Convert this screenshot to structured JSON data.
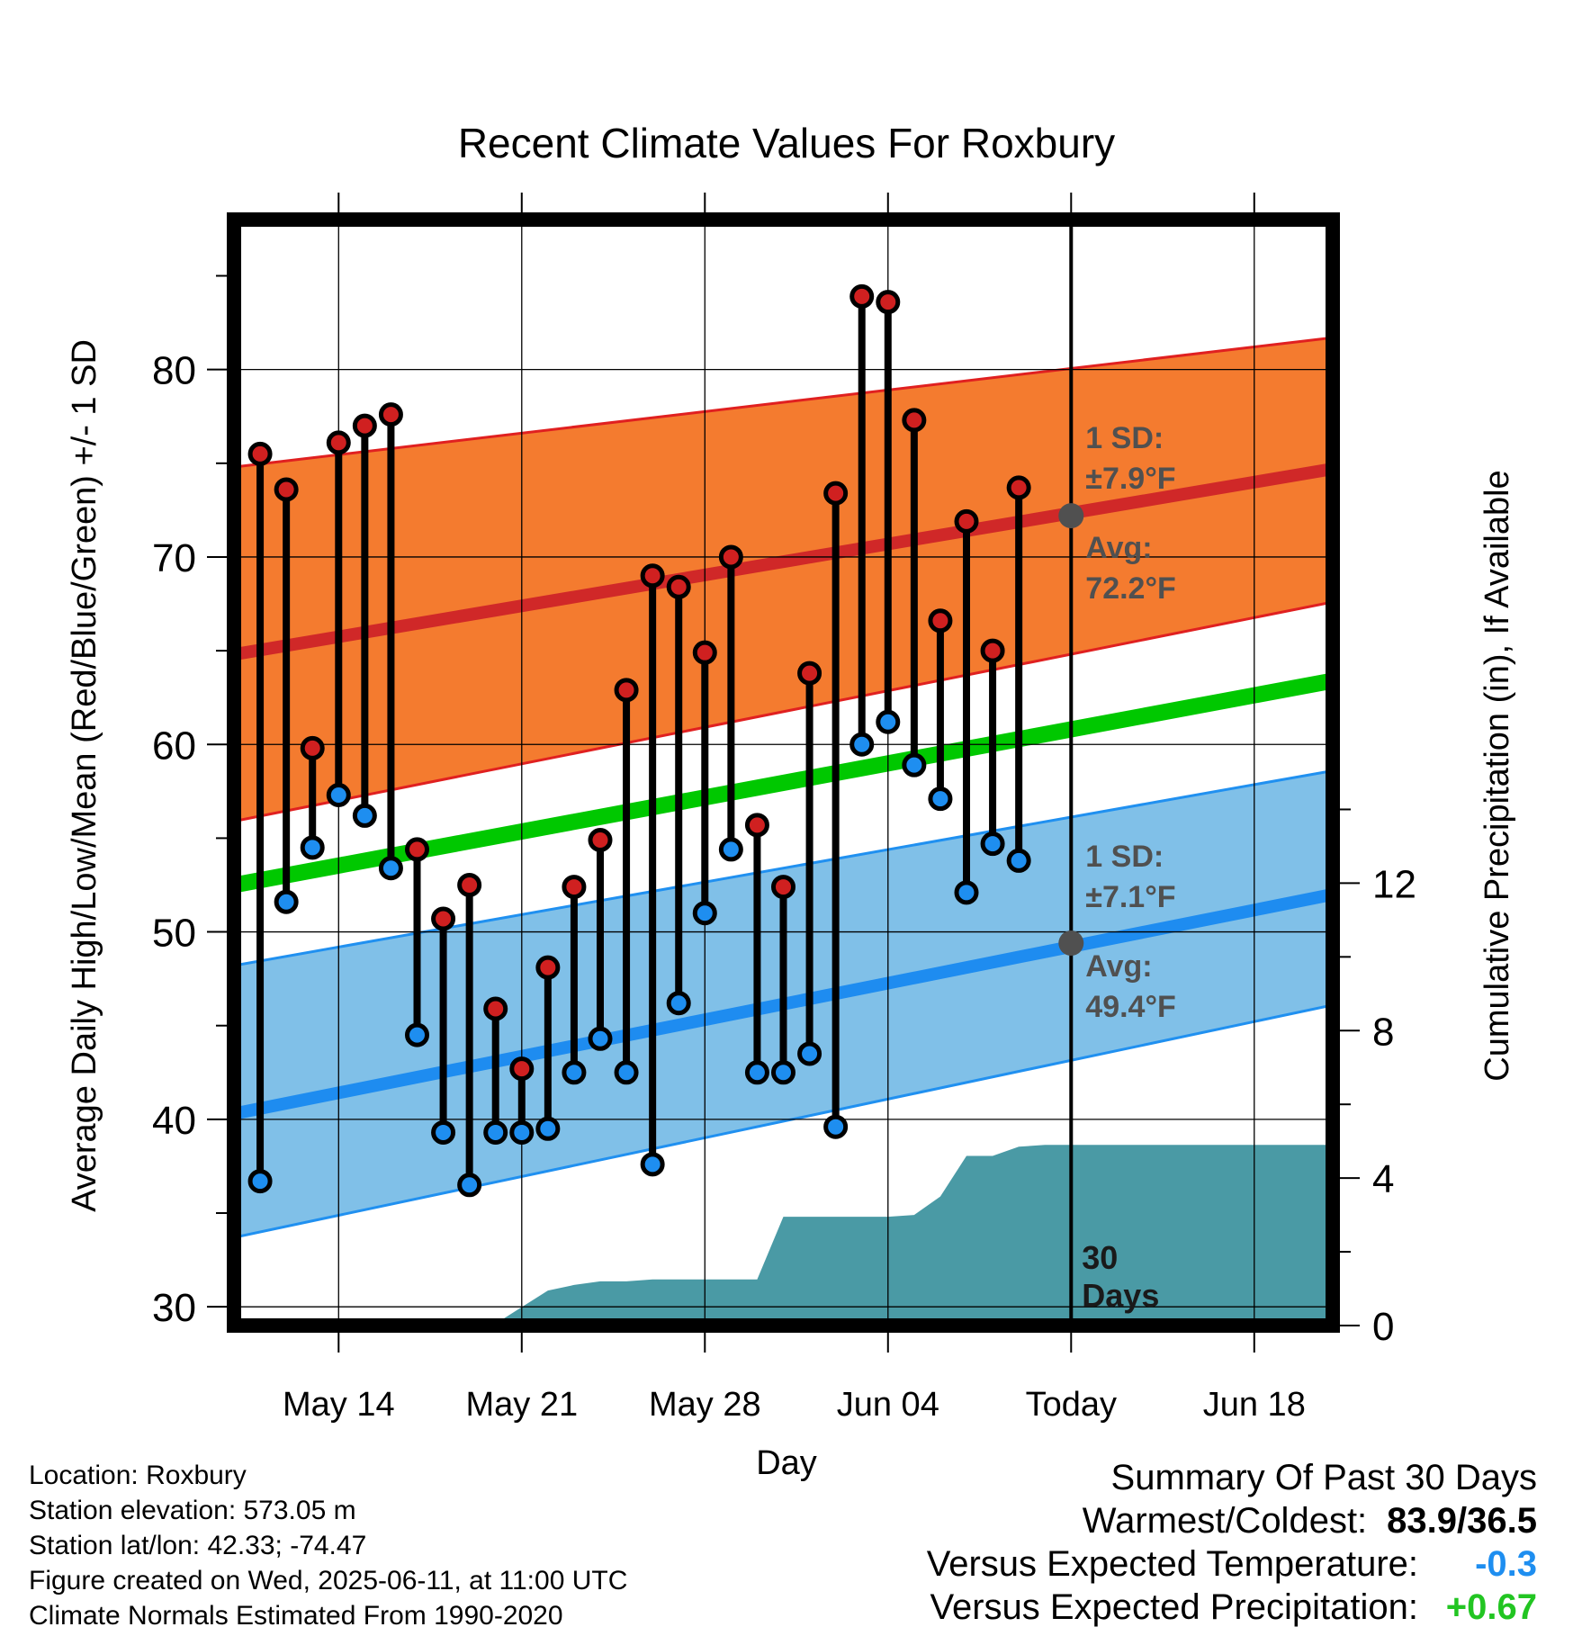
{
  "chart_data": {
    "type": "line",
    "title": "Recent Climate Values For Roxbury",
    "xlabel": "Day",
    "ylabel": "Average Daily High/Low/Mean (Red/Blue/Green) +/- 1 SD",
    "y2label": "Cumulative Precipitation (in), If Available",
    "ylim": [
      29,
      88
    ],
    "y2lim": [
      0,
      30
    ],
    "xlim": [
      "2025-05-10",
      "2025-06-21"
    ],
    "x_ticks": [
      {
        "date": "2025-05-14",
        "label": "May 14"
      },
      {
        "date": "2025-05-21",
        "label": "May 21"
      },
      {
        "date": "2025-05-28",
        "label": "May 28"
      },
      {
        "date": "2025-06-04",
        "label": "Jun 04"
      },
      {
        "date": "2025-06-11",
        "label": "Today"
      },
      {
        "date": "2025-06-18",
        "label": "Jun 18"
      }
    ],
    "y_ticks": [
      30,
      40,
      50,
      60,
      70,
      80
    ],
    "y2_ticks": [
      0,
      4,
      8,
      12
    ],
    "grid": true,
    "colors": {
      "high_band": "#f47b2f",
      "high_line": "#d02828",
      "low_band": "#80c0e8",
      "low_line": "#1e8cf0",
      "band_edge_high": "#e02020",
      "band_edge_low": "#2090f0",
      "mean_line": "#00c800",
      "precip": "#4a9aa5",
      "high_marker": "#d02020",
      "low_marker": "#1e8ef0",
      "annotation": "#505050"
    },
    "normals": {
      "dates": [
        "2025-05-10",
        "2025-06-21"
      ],
      "avg_high": [
        64.8,
        74.7
      ],
      "avg_low": [
        40.3,
        52.0
      ],
      "mean": [
        52.5,
        63.4
      ],
      "high_sd_upper": [
        74.8,
        81.7
      ],
      "high_sd_lower": [
        55.9,
        67.6
      ],
      "low_sd_upper": [
        48.2,
        58.6
      ],
      "low_sd_lower": [
        33.7,
        46.1
      ]
    },
    "daily": {
      "dates": [
        "2025-05-11",
        "2025-05-12",
        "2025-05-13",
        "2025-05-14",
        "2025-05-15",
        "2025-05-16",
        "2025-05-17",
        "2025-05-18",
        "2025-05-19",
        "2025-05-20",
        "2025-05-21",
        "2025-05-22",
        "2025-05-23",
        "2025-05-24",
        "2025-05-25",
        "2025-05-26",
        "2025-05-27",
        "2025-05-28",
        "2025-05-29",
        "2025-05-30",
        "2025-05-31",
        "2025-06-01",
        "2025-06-02",
        "2025-06-03",
        "2025-06-04",
        "2025-06-05",
        "2025-06-06",
        "2025-06-07",
        "2025-06-08",
        "2025-06-09",
        "2025-06-10"
      ],
      "highs": [
        75.5,
        73.6,
        59.8,
        76.1,
        77.0,
        77.6,
        54.4,
        50.7,
        52.5,
        45.9,
        42.7,
        48.1,
        52.4,
        54.9,
        62.9,
        69.0,
        68.4,
        64.9,
        70.0,
        55.7,
        52.4,
        63.8,
        73.4,
        83.9,
        83.6,
        77.3,
        66.6,
        71.9,
        65.0,
        73.7,
        null
      ],
      "lows": [
        36.7,
        51.6,
        54.5,
        57.3,
        56.2,
        53.4,
        44.5,
        39.3,
        36.5,
        39.3,
        39.3,
        39.5,
        42.5,
        44.3,
        42.5,
        37.6,
        46.2,
        51.0,
        54.4,
        42.5,
        42.5,
        43.5,
        39.6,
        60.0,
        61.2,
        58.9,
        57.1,
        52.1,
        54.7,
        53.8,
        null
      ]
    },
    "precip_cumulative": {
      "x": [
        "2025-05-10",
        "2025-05-19",
        "2025-05-20",
        "2025-05-21",
        "2025-05-22",
        "2025-05-23",
        "2025-05-24",
        "2025-05-25",
        "2025-05-26",
        "2025-05-30",
        "2025-05-31",
        "2025-06-04",
        "2025-06-05",
        "2025-06-06",
        "2025-06-07",
        "2025-06-08",
        "2025-06-09",
        "2025-06-10",
        "2025-06-11",
        "2025-06-21"
      ],
      "y": [
        0,
        0,
        0.05,
        0.5,
        0.95,
        1.1,
        1.2,
        1.2,
        1.25,
        1.25,
        2.95,
        2.95,
        3.0,
        3.5,
        4.6,
        4.6,
        4.85,
        4.9,
        4.9,
        4.9
      ]
    },
    "annotations": {
      "high_sd_label": "1 SD:",
      "high_sd_value": "±7.9°F",
      "high_avg_label": "Avg:",
      "high_avg_value": "72.2°F",
      "low_sd_label": "1 SD:",
      "low_sd_value": "±7.1°F",
      "low_avg_label": "Avg:",
      "low_avg_value": "49.4°F",
      "today_high_avg": 72.2,
      "today_low_avg": 49.4,
      "days_line1": "30",
      "days_line2": "Days"
    }
  },
  "footer": {
    "location": "Location: Roxbury",
    "elevation": "Station elevation: 573.05 m",
    "latlon": "Station lat/lon: 42.33; -74.47",
    "created": "Figure created on Wed, 2025-06-11, at 11:00 UTC",
    "normals": "Climate Normals Estimated From 1990-2020"
  },
  "summary": {
    "title": "Summary Of Past 30 Days",
    "warmest_coldest_label": "Warmest/Coldest:",
    "warmest_coldest_value": "83.9/36.5",
    "temp_label": "Versus Expected Temperature:",
    "temp_value": "-0.3",
    "temp_color": "#1e8ef0",
    "precip_label": "Versus Expected Precipitation:",
    "precip_value": "+0.67",
    "precip_color": "#22c522"
  }
}
